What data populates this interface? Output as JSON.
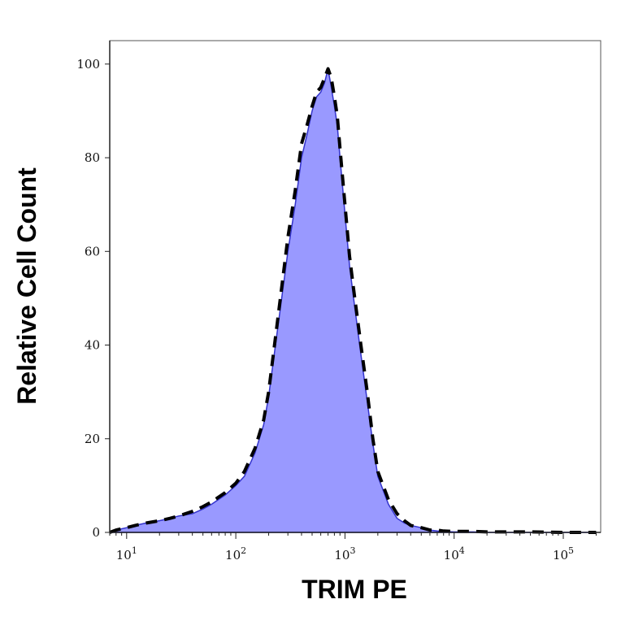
{
  "chart_data": {
    "type": "area",
    "title": "",
    "xlabel": "TRIM PE",
    "ylabel": "Relative Cell Count",
    "x_scale": "log",
    "xlim": [
      7,
      220000
    ],
    "ylim": [
      0,
      105
    ],
    "y_ticks": [
      0,
      20,
      40,
      60,
      80,
      100
    ],
    "x_ticks": [
      {
        "value": 10,
        "base": "10",
        "exp": "1"
      },
      {
        "value": 100,
        "base": "10",
        "exp": "2"
      },
      {
        "value": 1000,
        "base": "10",
        "exp": "3"
      },
      {
        "value": 10000,
        "base": "10",
        "exp": "4"
      },
      {
        "value": 100000,
        "base": "10",
        "exp": "5"
      }
    ],
    "grid": false,
    "legend": "none",
    "series": [
      {
        "style": "filled",
        "fill": "#9999ff",
        "stroke": "#3333cc",
        "x": [
          7,
          8,
          10,
          12,
          15,
          20,
          25,
          30,
          40,
          50,
          60,
          80,
          100,
          120,
          150,
          180,
          200,
          250,
          300,
          350,
          400,
          450,
          500,
          550,
          600,
          650,
          700,
          750,
          800,
          850,
          900,
          1000,
          1100,
          1200,
          1400,
          1600,
          1800,
          2000,
          2500,
          3000,
          3500,
          4000,
          5000,
          6000,
          7000,
          8000,
          10000,
          15000,
          20000,
          30000,
          50000,
          100000,
          200000
        ],
        "y": [
          0,
          0.5,
          1,
          1.5,
          2,
          2.5,
          3,
          3.5,
          4,
          5,
          6,
          8,
          10,
          12,
          17,
          23,
          29,
          46,
          60,
          70,
          80,
          85,
          90,
          93,
          94,
          96,
          99,
          95,
          91,
          87,
          80,
          68,
          57,
          50,
          38,
          28,
          19,
          12,
          6,
          3,
          2,
          1.5,
          1,
          0.5,
          0.3,
          0.2,
          0.1,
          0.1,
          0,
          0,
          0,
          0,
          0
        ]
      },
      {
        "style": "dashed",
        "stroke": "#000000",
        "x": [
          7,
          8,
          10,
          12,
          15,
          20,
          25,
          30,
          40,
          50,
          60,
          80,
          100,
          120,
          150,
          180,
          200,
          250,
          300,
          350,
          400,
          450,
          500,
          550,
          600,
          650,
          700,
          750,
          800,
          850,
          900,
          1000,
          1100,
          1200,
          1400,
          1600,
          1800,
          2000,
          2500,
          3000,
          3500,
          4000,
          5000,
          6000,
          7000,
          8000,
          10000,
          15000,
          20000,
          30000,
          50000,
          100000,
          200000
        ],
        "y": [
          0,
          0.5,
          1,
          1.5,
          2,
          2.5,
          3,
          3.5,
          4.5,
          5.5,
          6.5,
          8.5,
          10.5,
          13,
          18,
          24,
          30,
          48,
          63,
          73,
          83,
          87,
          91,
          94,
          95,
          97,
          99,
          97,
          93,
          89,
          82,
          70,
          59,
          52,
          40,
          30,
          20,
          13,
          7,
          4,
          2.5,
          1.5,
          1,
          0.5,
          0.5,
          0.3,
          0.2,
          0.2,
          0.1,
          0.1,
          0.1,
          0,
          0
        ]
      }
    ]
  }
}
